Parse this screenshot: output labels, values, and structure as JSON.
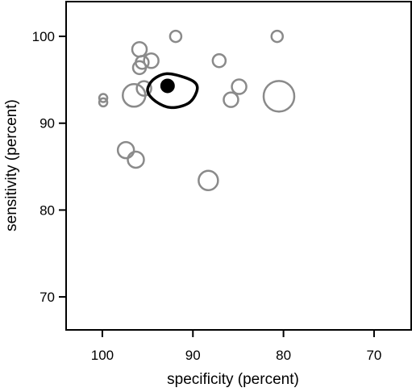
{
  "chart_data": {
    "type": "scatter",
    "title": "",
    "xlabel": "specificity (percent)",
    "ylabel": "sensitivity (percent)",
    "x_reversed": true,
    "xlim": [
      104.0,
      65.9
    ],
    "ylim": [
      66.2,
      104.0
    ],
    "grid": false,
    "x_ticks": [
      {
        "value": 100,
        "label": "100"
      },
      {
        "value": 90,
        "label": "90"
      },
      {
        "value": 80,
        "label": "80"
      },
      {
        "value": 70,
        "label": "70"
      }
    ],
    "y_ticks": [
      {
        "value": 100,
        "label": "100"
      },
      {
        "value": 90,
        "label": "90"
      },
      {
        "value": 80,
        "label": "80"
      },
      {
        "value": 70,
        "label": "70"
      }
    ],
    "colors": {
      "studies": "#8a8a8a",
      "summary": "#000000"
    },
    "studies": [
      {
        "x": 91.9,
        "y": 100.0,
        "r": 7
      },
      {
        "x": 80.7,
        "y": 100.0,
        "r": 7
      },
      {
        "x": 95.9,
        "y": 98.5,
        "r": 9
      },
      {
        "x": 95.6,
        "y": 97.0,
        "r": 8
      },
      {
        "x": 94.6,
        "y": 97.2,
        "r": 9
      },
      {
        "x": 87.1,
        "y": 97.2,
        "r": 8
      },
      {
        "x": 95.9,
        "y": 96.4,
        "r": 8
      },
      {
        "x": 95.4,
        "y": 94.0,
        "r": 9
      },
      {
        "x": 84.9,
        "y": 94.2,
        "r": 9
      },
      {
        "x": 96.5,
        "y": 93.2,
        "r": 14
      },
      {
        "x": 85.8,
        "y": 92.7,
        "r": 9
      },
      {
        "x": 80.5,
        "y": 93.1,
        "r": 19
      },
      {
        "x": 99.9,
        "y": 92.9,
        "r": 5
      },
      {
        "x": 99.9,
        "y": 92.4,
        "r": 5
      },
      {
        "x": 97.4,
        "y": 86.9,
        "r": 10
      },
      {
        "x": 96.3,
        "y": 85.8,
        "r": 10
      },
      {
        "x": 88.3,
        "y": 83.4,
        "r": 12
      }
    ],
    "summary_point": {
      "x": 92.8,
      "y": 94.3
    },
    "confidence_region": [
      [
        92.9,
        95.7
      ],
      [
        91.0,
        95.3
      ],
      [
        89.7,
        94.6
      ],
      [
        89.6,
        93.6
      ],
      [
        90.5,
        92.3
      ],
      [
        92.4,
        91.8
      ],
      [
        94.1,
        92.5
      ],
      [
        95.0,
        93.7
      ],
      [
        94.4,
        95.0
      ]
    ]
  }
}
